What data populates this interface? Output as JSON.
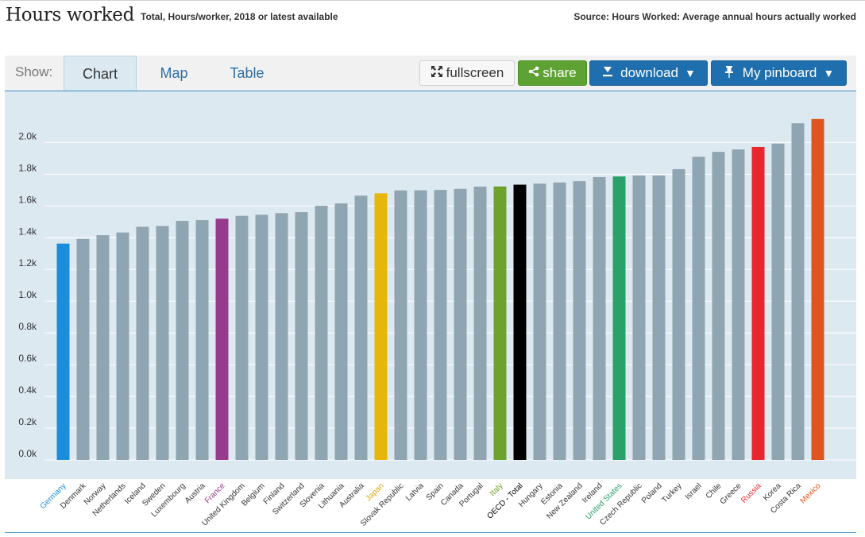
{
  "header": {
    "title": "Hours worked",
    "subtitle": "Total, Hours/worker, 2018 or latest available",
    "source": "Source: Hours Worked: Average annual hours actually worked"
  },
  "toolbar": {
    "show_label": "Show:",
    "tabs": [
      {
        "label": "Chart",
        "active": true
      },
      {
        "label": "Map",
        "active": false
      },
      {
        "label": "Table",
        "active": false
      }
    ],
    "fullscreen_label": "fullscreen",
    "share_label": "share",
    "download_label": "download",
    "pinboard_label": "My pinboard",
    "icons": {
      "fullscreen": "expand-arrows-icon",
      "share": "share-icon",
      "download": "download-icon",
      "pinboard": "pushpin-icon",
      "dropdown": "caret-down-icon"
    }
  },
  "colors": {
    "plot_background": "#dde9f1",
    "default_bar": "#8fa5b2",
    "accent_blue": "#1f6fae",
    "accent_green": "#5ea233"
  },
  "chart_data": {
    "type": "bar",
    "title": "Hours worked",
    "subtitle": "Total, Hours/worker, 2018 or latest available",
    "ylim": [
      0,
      2200
    ],
    "yticks": [
      0,
      200,
      400,
      600,
      800,
      1000,
      1200,
      1400,
      1600,
      1800,
      2000
    ],
    "ytick_labels": [
      "0.0k",
      "0.2k",
      "0.4k",
      "0.6k",
      "0.8k",
      "1.0k",
      "1.2k",
      "1.4k",
      "1.6k",
      "1.8k",
      "2.0k"
    ],
    "grid": true,
    "categories": [
      "Germany",
      "Denmark",
      "Norway",
      "Netherlands",
      "Iceland",
      "Sweden",
      "Luxembourg",
      "Austria",
      "France",
      "United Kingdom",
      "Belgium",
      "Finland",
      "Switzerland",
      "Slovenia",
      "Lithuania",
      "Australia",
      "Japan",
      "Slovak Republic",
      "Latvia",
      "Spain",
      "Canada",
      "Portugal",
      "Italy",
      "OECD - Total",
      "Hungary",
      "Estonia",
      "New Zealand",
      "Ireland",
      "United States",
      "Czech Republic",
      "Poland",
      "Turkey",
      "Israel",
      "Chile",
      "Greece",
      "Russia",
      "Korea",
      "Costa Rica",
      "Mexico"
    ],
    "values": [
      1363,
      1392,
      1416,
      1433,
      1469,
      1474,
      1506,
      1511,
      1520,
      1538,
      1545,
      1555,
      1561,
      1601,
      1616,
      1665,
      1680,
      1698,
      1699,
      1701,
      1708,
      1722,
      1723,
      1734,
      1741,
      1748,
      1756,
      1782,
      1786,
      1792,
      1792,
      1832,
      1910,
      1941,
      1956,
      1972,
      1993,
      2121,
      2148
    ],
    "bar_colors": [
      "#1a8ddc",
      "#8fa5b2",
      "#8fa5b2",
      "#8fa5b2",
      "#8fa5b2",
      "#8fa5b2",
      "#8fa5b2",
      "#8fa5b2",
      "#963a8c",
      "#8fa5b2",
      "#8fa5b2",
      "#8fa5b2",
      "#8fa5b2",
      "#8fa5b2",
      "#8fa5b2",
      "#8fa5b2",
      "#e6b70a",
      "#8fa5b2",
      "#8fa5b2",
      "#8fa5b2",
      "#8fa5b2",
      "#8fa5b2",
      "#6ea22c",
      "#000000",
      "#8fa5b2",
      "#8fa5b2",
      "#8fa5b2",
      "#8fa5b2",
      "#2aa06b",
      "#8fa5b2",
      "#8fa5b2",
      "#8fa5b2",
      "#8fa5b2",
      "#8fa5b2",
      "#8fa5b2",
      "#e8262d",
      "#8fa5b2",
      "#8fa5b2",
      "#e0541f"
    ],
    "label_colors": [
      "#1a8ddc",
      "#333333",
      "#333333",
      "#333333",
      "#333333",
      "#333333",
      "#333333",
      "#333333",
      "#963a8c",
      "#333333",
      "#333333",
      "#333333",
      "#333333",
      "#333333",
      "#333333",
      "#333333",
      "#d9a90a",
      "#333333",
      "#333333",
      "#333333",
      "#333333",
      "#333333",
      "#6ea22c",
      "#000000",
      "#333333",
      "#333333",
      "#333333",
      "#333333",
      "#2aa06b",
      "#333333",
      "#333333",
      "#333333",
      "#333333",
      "#333333",
      "#333333",
      "#e8262d",
      "#333333",
      "#333333",
      "#e0541f"
    ]
  }
}
